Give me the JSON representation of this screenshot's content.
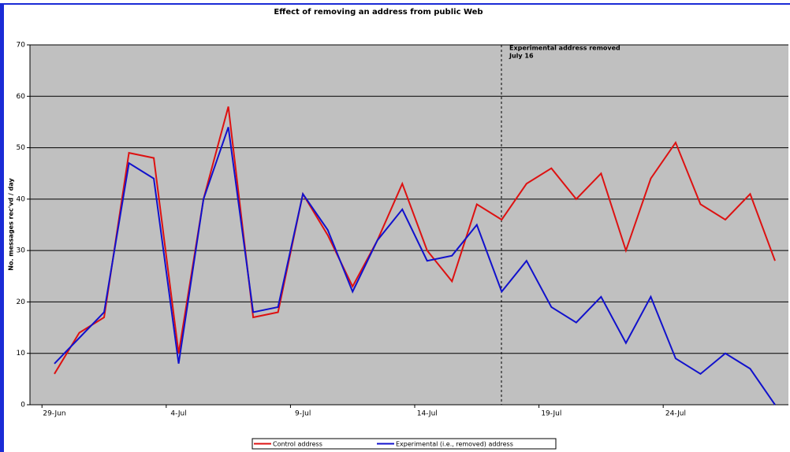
{
  "chart_data": {
    "type": "line",
    "title": "Effect of removing an address from public Web",
    "y_label": "No. messages rec'vd / day",
    "annotation": [
      "Experimental address removed",
      "July 16"
    ],
    "categories": [
      "29-Jun",
      null,
      null,
      null,
      null,
      "4-Jul",
      null,
      null,
      null,
      null,
      "9-Jul",
      null,
      null,
      null,
      null,
      "14-Jul",
      null,
      null,
      null,
      null,
      "19-Jul",
      null,
      null,
      null,
      null,
      "24-Jul",
      null,
      null,
      null,
      null
    ],
    "series": [
      {
        "name": "Control  address",
        "color": "#dd1111",
        "values": [
          6,
          14,
          17,
          49,
          48,
          10,
          40,
          58,
          17,
          18,
          41,
          33,
          23,
          32,
          43,
          30,
          24,
          39,
          36,
          43,
          46,
          40,
          45,
          30,
          44,
          51,
          39,
          36,
          41,
          28
        ]
      },
      {
        "name": "Experimental (i.e., removed) address",
        "color": "#1111cc",
        "values": [
          8,
          13,
          18,
          47,
          44,
          8,
          40,
          54,
          18,
          19,
          41,
          34,
          22,
          32,
          38,
          28,
          29,
          35,
          22,
          28,
          19,
          16,
          21,
          12,
          21,
          9,
          6,
          10,
          7,
          0
        ]
      }
    ],
    "ylim": [
      0,
      70
    ],
    "yticks": [
      0,
      10,
      20,
      30,
      40,
      50,
      60,
      70
    ],
    "grid": true
  }
}
